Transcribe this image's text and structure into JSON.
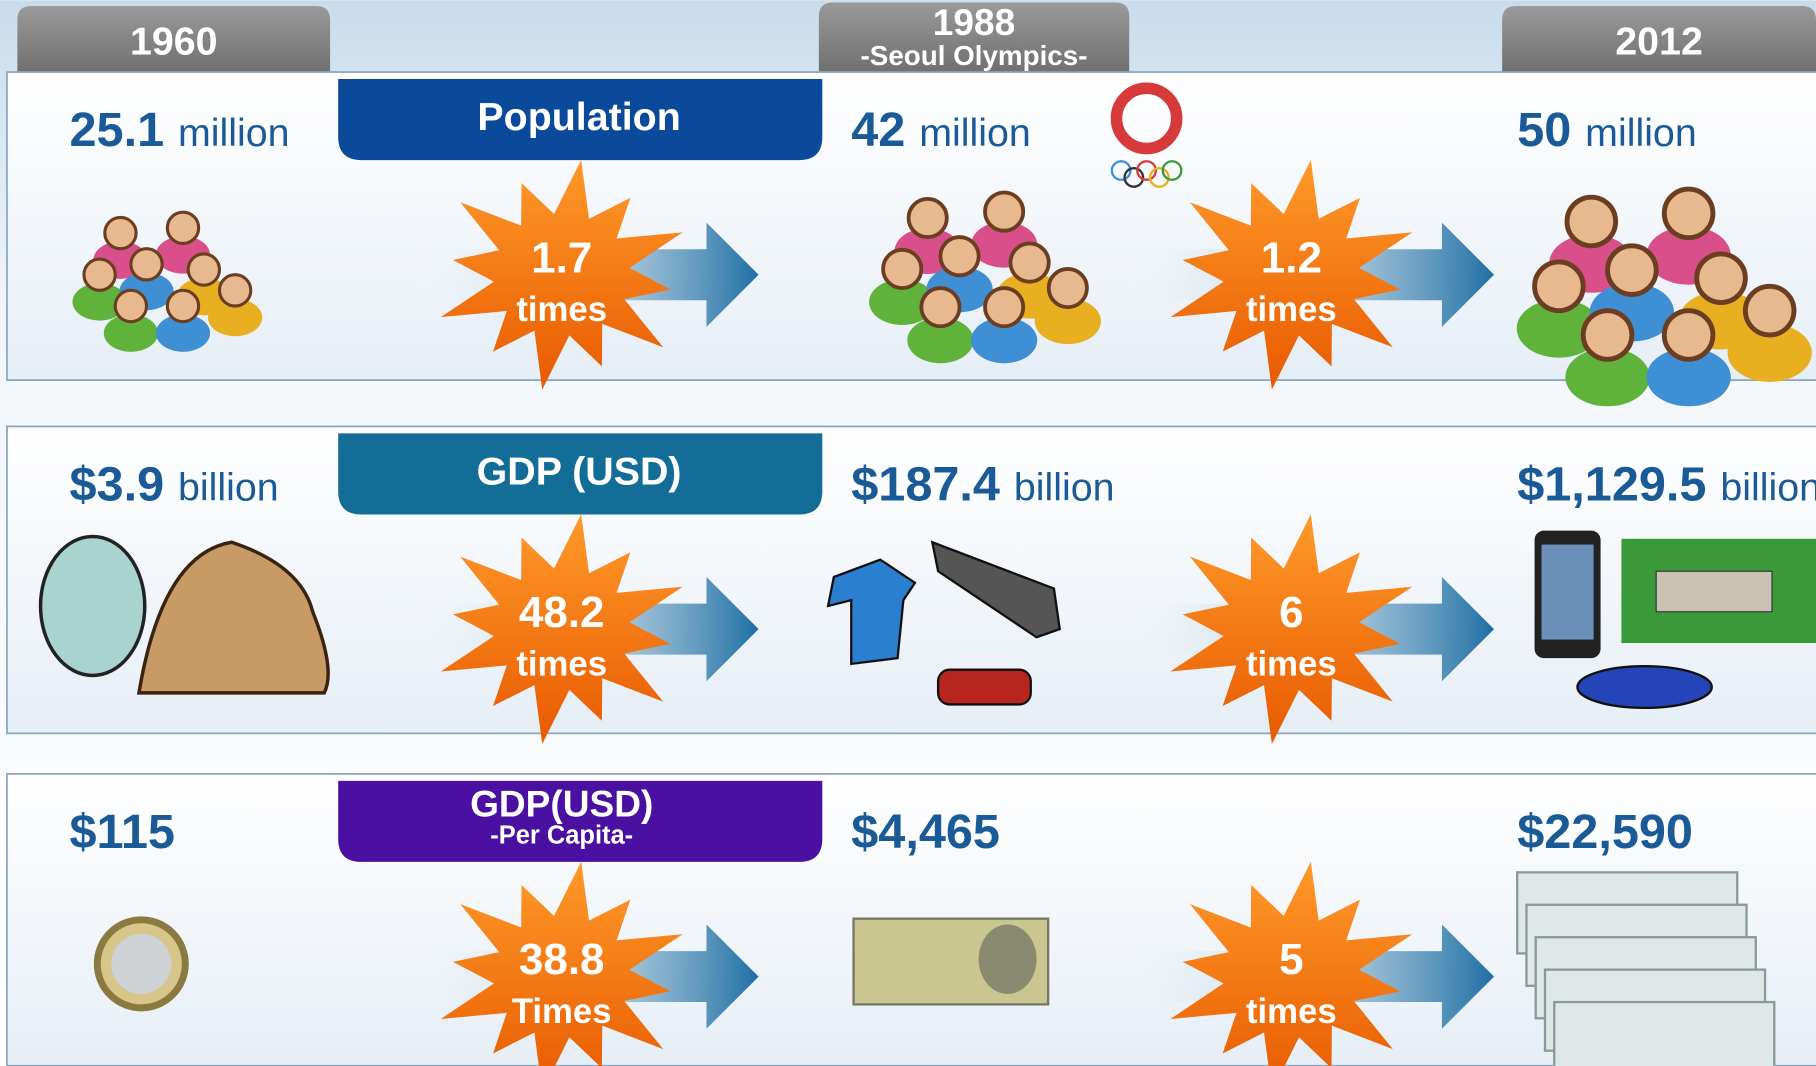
{
  "headers": [
    {
      "year": "1960"
    },
    {
      "year": "1988",
      "note": "-Seoul Olympics-"
    },
    {
      "year": "2012"
    }
  ],
  "rows": [
    {
      "title": "Population",
      "values": [
        {
          "amount": "25.1",
          "unit": "million"
        },
        {
          "amount": "42",
          "unit": "million"
        },
        {
          "amount": "50",
          "unit": "million"
        }
      ],
      "growth": [
        {
          "factor": "1.7",
          "unit": "times"
        },
        {
          "factor": "1.2",
          "unit": "times"
        }
      ]
    },
    {
      "title": "GDP (USD)",
      "values": [
        {
          "amount": "$3.9",
          "unit": "billion"
        },
        {
          "amount": "$187.4",
          "unit": "billion"
        },
        {
          "amount": "$1,129.5",
          "unit": "billion"
        }
      ],
      "growth": [
        {
          "factor": "48.2",
          "unit": "times"
        },
        {
          "factor": "6",
          "unit": "times"
        }
      ]
    },
    {
      "title": "GDP(USD)",
      "subtitle": "-Per Capita-",
      "values": [
        {
          "amount": "$115"
        },
        {
          "amount": "$4,465"
        },
        {
          "amount": "$22,590"
        }
      ],
      "growth": [
        {
          "factor": "38.8",
          "unit": "Times"
        },
        {
          "factor": "5",
          "unit": "times"
        }
      ]
    }
  ]
}
